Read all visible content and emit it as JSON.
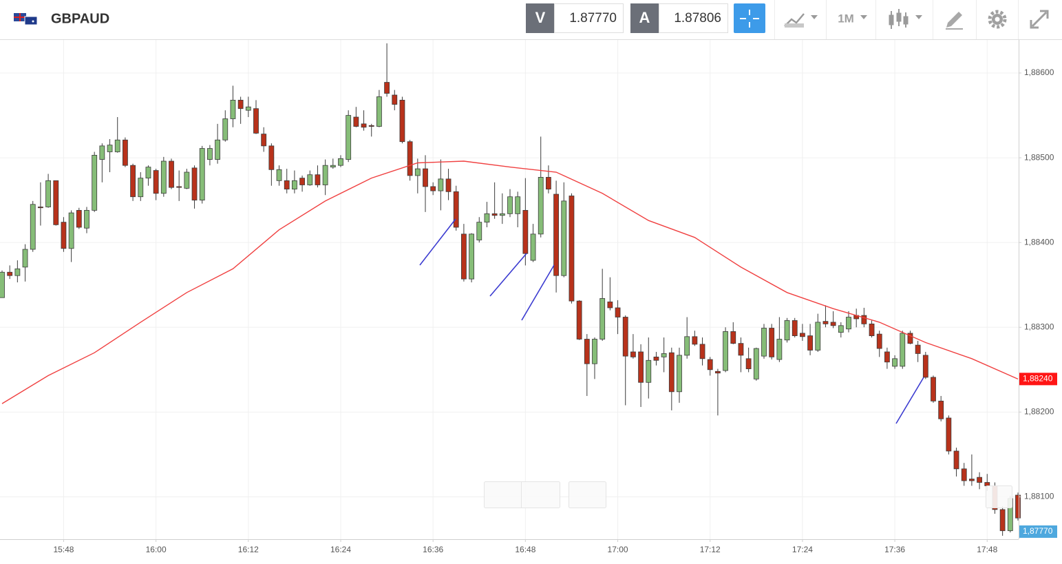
{
  "toolbar": {
    "symbol": "GBPAUD",
    "bid_label": "V",
    "bid": "1.87770",
    "ask_label": "A",
    "ask": "1.87806",
    "timeframe": "1M"
  },
  "chart_data": {
    "type": "candlestick",
    "x": [
      "15:40",
      "15:41",
      "15:42",
      "15:43",
      "15:44",
      "15:45",
      "15:46",
      "15:47",
      "15:48",
      "15:49",
      "15:50",
      "15:51",
      "15:52",
      "15:53",
      "15:54",
      "15:55",
      "15:56",
      "15:57",
      "15:58",
      "15:59",
      "16:00",
      "16:01",
      "16:02",
      "16:03",
      "16:04",
      "16:05",
      "16:06",
      "16:07",
      "16:08",
      "16:09",
      "16:10",
      "16:11",
      "16:12",
      "16:13",
      "16:14",
      "16:15",
      "16:16",
      "16:17",
      "16:18",
      "16:19",
      "16:20",
      "16:21",
      "16:22",
      "16:23",
      "16:24",
      "16:25",
      "16:26",
      "16:27",
      "16:28",
      "16:29",
      "16:30",
      "16:31",
      "16:32",
      "16:33",
      "16:34",
      "16:35",
      "16:36",
      "16:37",
      "16:38",
      "16:39",
      "16:40",
      "16:41",
      "16:42",
      "16:43",
      "16:44",
      "16:45",
      "16:46",
      "16:47",
      "16:48",
      "16:49",
      "16:50",
      "16:51",
      "16:52",
      "16:53",
      "16:54",
      "16:55",
      "16:56",
      "16:57",
      "16:58",
      "16:59",
      "17:00",
      "17:01",
      "17:02",
      "17:03",
      "17:04",
      "17:05",
      "17:06",
      "17:07",
      "17:08",
      "17:09",
      "17:10",
      "17:11",
      "17:12",
      "17:13",
      "17:14",
      "17:15",
      "17:16",
      "17:17",
      "17:18",
      "17:19",
      "17:20",
      "17:21",
      "17:22",
      "17:23",
      "17:24",
      "17:25",
      "17:26",
      "17:27",
      "17:28",
      "17:29",
      "17:30",
      "17:31",
      "17:32",
      "17:33",
      "17:34",
      "17:35",
      "17:36",
      "17:37",
      "17:38",
      "17:39",
      "17:40",
      "17:41",
      "17:42",
      "17:43",
      "17:44",
      "17:45",
      "17:46",
      "17:47",
      "17:48",
      "17:49",
      "17:50",
      "17:51",
      "17:52"
    ],
    "open": [
      1.88335,
      1.88365,
      1.88361,
      1.88371,
      1.88392,
      1.88442,
      1.88442,
      1.88473,
      1.88424,
      1.88393,
      1.88438,
      1.88417,
      1.88438,
      1.88498,
      1.88507,
      1.88507,
      1.88521,
      1.88491,
      1.88454,
      1.88476,
      1.88485,
      1.88458,
      1.88496,
      1.88466,
      1.88464,
      1.88488,
      1.8845,
      1.88498,
      1.88498,
      1.88521,
      1.88546,
      1.88568,
      1.88556,
      1.88558,
      1.88528,
      1.88514,
      1.88473,
      1.88473,
      1.88463,
      1.88476,
      1.88468,
      1.8848,
      1.88468,
      1.88489,
      1.88491,
      1.88498,
      1.88548,
      1.8854,
      1.88538,
      1.88537,
      1.88589,
      1.88574,
      1.88568,
      1.88519,
      1.88479,
      1.88487,
      1.88466,
      1.88461,
      1.88475,
      1.8846,
      1.8841,
      1.88357,
      1.88403,
      1.88424,
      1.88434,
      1.88432,
      1.88434,
      1.88434,
      1.88438,
      1.88379,
      1.8841,
      1.88477,
      1.88457,
      1.88361,
      1.88455,
      1.88331,
      1.88286,
      1.88257,
      1.88286,
      1.8833,
      1.88323,
      1.88312,
      1.88271,
      1.88271,
      1.88235,
      1.88265,
      1.88265,
      1.8827,
      1.88224,
      1.88267,
      1.88289,
      1.8828,
      1.88262,
      1.88248,
      1.88249,
      1.88295,
      1.88281,
      1.88263,
      1.88239,
      1.88266,
      1.88299,
      1.88262,
      1.88285,
      1.88308,
      1.88293,
      1.8829,
      1.88273,
      1.88307,
      1.88306,
      1.88294,
      1.88298,
      1.88314,
      1.88314,
      1.88304,
      1.88292,
      1.88271,
      1.88254,
      1.88254,
      1.88293,
      1.88279,
      1.88267,
      1.88241,
      1.88213,
      1.88193,
      1.88154,
      1.88133,
      1.88121,
      1.88123,
      1.88117,
      1.88113,
      1.88085,
      1.8806,
      1.88102
    ],
    "high": [
      1.88367,
      1.88373,
      1.88379,
      1.88398,
      1.88449,
      1.88471,
      1.88481,
      1.88473,
      1.8843,
      1.88438,
      1.88441,
      1.88442,
      1.88507,
      1.88517,
      1.88522,
      1.88548,
      1.88524,
      1.88493,
      1.88483,
      1.88491,
      1.88487,
      1.88501,
      1.88499,
      1.88485,
      1.88487,
      1.88491,
      1.88514,
      1.88515,
      1.8854,
      1.88556,
      1.88585,
      1.88572,
      1.88572,
      1.88568,
      1.88536,
      1.88517,
      1.88491,
      1.88487,
      1.88485,
      1.88479,
      1.88485,
      1.88491,
      1.88498,
      1.88499,
      1.88503,
      1.88556,
      1.8856,
      1.88556,
      1.8854,
      1.8858,
      1.88635,
      1.8858,
      1.88572,
      1.88521,
      1.88499,
      1.88503,
      1.88471,
      1.88498,
      1.88487,
      1.88467,
      1.88422,
      1.88411,
      1.8843,
      1.88448,
      1.88471,
      1.88458,
      1.88463,
      1.8846,
      1.88476,
      1.88422,
      1.88525,
      1.88491,
      1.88473,
      1.88471,
      1.88458,
      1.88332,
      1.88292,
      1.88288,
      1.88369,
      1.88359,
      1.88332,
      1.88314,
      1.88292,
      1.8828,
      1.88288,
      1.88271,
      1.88288,
      1.88276,
      1.88276,
      1.88312,
      1.88296,
      1.88288,
      1.88265,
      1.88251,
      1.883,
      1.88306,
      1.88288,
      1.88276,
      1.88276,
      1.88304,
      1.88304,
      1.88312,
      1.88311,
      1.88311,
      1.88304,
      1.88304,
      1.88316,
      1.88326,
      1.88319,
      1.88306,
      1.88319,
      1.88322,
      1.88323,
      1.88308,
      1.88296,
      1.88276,
      1.88267,
      1.88296,
      1.88296,
      1.88284,
      1.88271,
      1.88243,
      1.88219,
      1.88196,
      1.88158,
      1.8814,
      1.8815,
      1.88129,
      1.88127,
      1.88117,
      1.88089,
      1.88101,
      1.88105
    ],
    "low": [
      1.88335,
      1.88357,
      1.88353,
      1.88354,
      1.88389,
      1.8842,
      1.88441,
      1.8842,
      1.88389,
      1.88377,
      1.88416,
      1.88411,
      1.88436,
      1.88471,
      1.88483,
      1.88506,
      1.88489,
      1.88449,
      1.88449,
      1.88467,
      1.8845,
      1.88454,
      1.88463,
      1.88449,
      1.88463,
      1.8844,
      1.88446,
      1.88491,
      1.88493,
      1.88519,
      1.88536,
      1.8854,
      1.88548,
      1.88528,
      1.88507,
      1.88467,
      1.88467,
      1.88458,
      1.88458,
      1.8846,
      1.88467,
      1.88465,
      1.88456,
      1.88487,
      1.88489,
      1.88495,
      1.88536,
      1.88532,
      1.88525,
      1.88536,
      1.88572,
      1.88556,
      1.88517,
      1.88473,
      1.88458,
      1.88436,
      1.88456,
      1.88438,
      1.8845,
      1.88414,
      1.88354,
      1.88353,
      1.884,
      1.88418,
      1.88428,
      1.88422,
      1.8843,
      1.88418,
      1.88373,
      1.88377,
      1.88406,
      1.88458,
      1.88341,
      1.88359,
      1.88328,
      1.88285,
      1.88219,
      1.88239,
      1.88284,
      1.8832,
      1.88292,
      1.88208,
      1.88263,
      1.88206,
      1.88216,
      1.88255,
      1.88247,
      1.88202,
      1.88211,
      1.88263,
      1.88278,
      1.88255,
      1.88243,
      1.88196,
      1.88247,
      1.8828,
      1.88247,
      1.88247,
      1.88237,
      1.88263,
      1.88262,
      1.88259,
      1.88282,
      1.88288,
      1.88284,
      1.88267,
      1.88271,
      1.883,
      1.88299,
      1.88288,
      1.88294,
      1.883,
      1.883,
      1.88288,
      1.88265,
      1.88251,
      1.88251,
      1.88251,
      1.8828,
      1.88259,
      1.88239,
      1.88211,
      1.88189,
      1.8815,
      1.88124,
      1.88113,
      1.88113,
      1.88109,
      1.88107,
      1.8808,
      1.88054,
      1.88058,
      1.88072
    ],
    "close": [
      1.88365,
      1.88361,
      1.88369,
      1.88392,
      1.88445,
      1.88441,
      1.88473,
      1.88421,
      1.88393,
      1.88435,
      1.88418,
      1.88438,
      1.88503,
      1.88514,
      1.88515,
      1.88521,
      1.88491,
      1.88454,
      1.88476,
      1.88489,
      1.88458,
      1.88496,
      1.88465,
      1.88465,
      1.88483,
      1.8845,
      1.88511,
      1.88511,
      1.88521,
      1.88546,
      1.88568,
      1.88558,
      1.8856,
      1.88529,
      1.88514,
      1.88486,
      1.88486,
      1.88463,
      1.88473,
      1.88468,
      1.8848,
      1.88468,
      1.88491,
      1.88491,
      1.88499,
      1.8855,
      1.88537,
      1.88536,
      1.88537,
      1.88572,
      1.88576,
      1.88563,
      1.88519,
      1.88479,
      1.88487,
      1.88466,
      1.88461,
      1.88475,
      1.8846,
      1.88418,
      1.88357,
      1.8841,
      1.88424,
      1.88434,
      1.88432,
      1.88434,
      1.88454,
      1.88454,
      1.88387,
      1.8841,
      1.88477,
      1.88463,
      1.88361,
      1.88449,
      1.88331,
      1.88286,
      1.88257,
      1.88286,
      1.88334,
      1.88323,
      1.88312,
      1.88266,
      1.88265,
      1.88235,
      1.88261,
      1.88261,
      1.88269,
      1.88224,
      1.88267,
      1.88289,
      1.8828,
      1.88263,
      1.8825,
      1.88246,
      1.88295,
      1.88281,
      1.88267,
      1.88251,
      1.88275,
      1.88299,
      1.88265,
      1.88286,
      1.88308,
      1.8829,
      1.88289,
      1.88273,
      1.88306,
      1.88304,
      1.88302,
      1.88302,
      1.88312,
      1.8831,
      1.88304,
      1.8829,
      1.88275,
      1.88259,
      1.88263,
      1.88293,
      1.88281,
      1.88269,
      1.88241,
      1.88213,
      1.88192,
      1.88154,
      1.88133,
      1.88119,
      1.88119,
      1.88117,
      1.88113,
      1.88085,
      1.8806,
      1.88098,
      1.88075
    ],
    "colors": {
      "up": "#86bd78",
      "down": "#b8321b",
      "outline": "#3a3a3a"
    },
    "moving_average": {
      "color": "#f04040",
      "x": [
        "15:40",
        "15:46",
        "15:52",
        "15:58",
        "16:04",
        "16:10",
        "16:16",
        "16:22",
        "16:28",
        "16:34",
        "16:40",
        "16:46",
        "16:52",
        "16:58",
        "17:04",
        "17:10",
        "17:16",
        "17:22",
        "17:28",
        "17:34",
        "17:40",
        "17:46",
        "17:52"
      ],
      "values": [
        1.8821,
        1.88243,
        1.8827,
        1.88306,
        1.88341,
        1.88369,
        1.88415,
        1.88449,
        1.88476,
        1.88494,
        1.88496,
        1.88489,
        1.88483,
        1.88458,
        1.88426,
        1.88406,
        1.88371,
        1.88341,
        1.88322,
        1.88306,
        1.88282,
        1.88263,
        1.88239
      ]
    },
    "ma_label": "1,88240",
    "ma_label_color": "#ff1515",
    "last_price_label": "1,87770",
    "last_price_color": "#4ea8de",
    "xlim": [
      "15:40",
      "17:52"
    ],
    "xticks": [
      "15:48",
      "16:00",
      "16:12",
      "16:24",
      "16:36",
      "16:48",
      "17:00",
      "17:12",
      "17:24",
      "17:36",
      "17:48"
    ],
    "ylim": [
      1.8805,
      1.88639
    ],
    "yticks": [
      {
        "value": 1.886,
        "label": "1,88600"
      },
      {
        "value": 1.885,
        "label": "1,88500"
      },
      {
        "value": 1.884,
        "label": "1,88400"
      },
      {
        "value": 1.883,
        "label": "1,88300"
      },
      {
        "value": 1.882,
        "label": "1,88200"
      },
      {
        "value": 1.881,
        "label": "1,88100"
      }
    ],
    "grid": true
  }
}
